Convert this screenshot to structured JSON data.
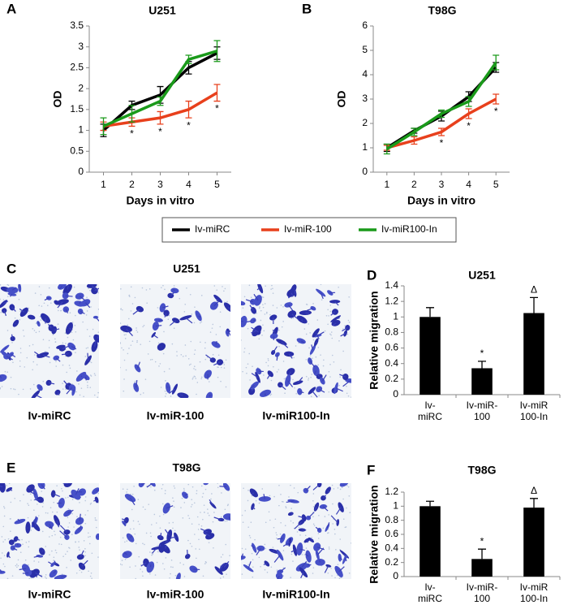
{
  "chart_data": [
    {
      "type": "line",
      "panel": "A",
      "title": "U251",
      "xlabel": "Days in vitro",
      "ylabel": "OD",
      "x": [
        1,
        2,
        3,
        4,
        5
      ],
      "xlim": [
        0.5,
        5.5
      ],
      "xticks": [
        1,
        2,
        3,
        4,
        5
      ],
      "ylim": [
        0,
        3.5
      ],
      "yticks": [
        0,
        0.5,
        1,
        1.5,
        2,
        2.5,
        3,
        3.5
      ],
      "series": [
        {
          "name": "Iv-miRC",
          "color": "#000000",
          "values": [
            1.0,
            1.6,
            1.85,
            2.5,
            2.85
          ],
          "errors": [
            0.15,
            0.1,
            0.2,
            0.15,
            0.15
          ]
        },
        {
          "name": "Iv-miR-100",
          "color": "#e8401c",
          "values": [
            1.1,
            1.2,
            1.3,
            1.5,
            1.9
          ],
          "errors": [
            0.1,
            0.1,
            0.15,
            0.2,
            0.2
          ]
        },
        {
          "name": "Iv-miR100-In",
          "color": "#1a9a1a",
          "values": [
            1.1,
            1.4,
            1.7,
            2.7,
            2.9
          ],
          "errors": [
            0.2,
            0.2,
            0.1,
            0.1,
            0.25
          ]
        }
      ],
      "annotations": [
        {
          "x": 2,
          "text": "*"
        },
        {
          "x": 3,
          "text": "*"
        },
        {
          "x": 4,
          "text": "*"
        },
        {
          "x": 5,
          "text": "*"
        }
      ]
    },
    {
      "type": "line",
      "panel": "B",
      "title": "T98G",
      "xlabel": "Days in vitro",
      "ylabel": "OD",
      "x": [
        1,
        2,
        3,
        4,
        5
      ],
      "xlim": [
        0.5,
        5.5
      ],
      "xticks": [
        1,
        2,
        3,
        4,
        5
      ],
      "ylim": [
        0,
        6
      ],
      "yticks": [
        0,
        1,
        2,
        3,
        4,
        5,
        6
      ],
      "series": [
        {
          "color": "#000000",
          "values": [
            1.0,
            1.7,
            2.3,
            3.1,
            4.3
          ],
          "errors": [
            0.15,
            0.1,
            0.2,
            0.2,
            0.2
          ]
        },
        {
          "color": "#e8401c",
          "values": [
            1.0,
            1.3,
            1.65,
            2.4,
            3.0
          ],
          "errors": [
            0.1,
            0.15,
            0.15,
            0.2,
            0.2
          ]
        },
        {
          "color": "#1a9a1a",
          "values": [
            0.95,
            1.65,
            2.4,
            2.9,
            4.5
          ],
          "errors": [
            0.2,
            0.15,
            0.15,
            0.2,
            0.3
          ]
        }
      ],
      "annotations": [
        {
          "x": 3,
          "text": "*"
        },
        {
          "x": 4,
          "text": "*"
        },
        {
          "x": 5,
          "text": "*"
        }
      ]
    },
    {
      "type": "bar",
      "panel": "D",
      "title": "U251",
      "ylabel": "Relative migration",
      "categories": [
        [
          "Iv-",
          "miRC"
        ],
        [
          "Iv-miR-",
          "100"
        ],
        [
          "Iv-miR",
          "100-In"
        ]
      ],
      "values": [
        1.0,
        0.34,
        1.05
      ],
      "errors": [
        0.12,
        0.09,
        0.2
      ],
      "color": "#000000",
      "bar_labels": [
        null,
        "*",
        "Δ"
      ],
      "ylim": [
        0,
        1.4
      ],
      "yticks": [
        0,
        0.2,
        0.4,
        0.6,
        0.8,
        1,
        1.2,
        1.4
      ]
    },
    {
      "type": "bar",
      "panel": "F",
      "title": "T98G",
      "ylabel": "Relative migration",
      "categories": [
        [
          "Iv-",
          "miRC"
        ],
        [
          "Iv-miR-",
          "100"
        ],
        [
          "Iv-miR",
          "100-In"
        ]
      ],
      "values": [
        1.0,
        0.25,
        0.98
      ],
      "errors": [
        0.07,
        0.14,
        0.13
      ],
      "color": "#000000",
      "bar_labels": [
        null,
        "*",
        "Δ"
      ],
      "ylim": [
        0,
        1.2
      ],
      "yticks": [
        0,
        0.2,
        0.4,
        0.6,
        0.8,
        1,
        1.2
      ]
    }
  ],
  "image_panels": [
    {
      "panel": "C",
      "title": "U251",
      "captions": [
        "Iv-miRC",
        "Iv-miR-100",
        "Iv-miR100-In"
      ]
    },
    {
      "panel": "E",
      "title": "T98G",
      "captions": [
        "Iv-miRC",
        "Iv-miR-100",
        "Iv-miR100-In"
      ]
    }
  ]
}
